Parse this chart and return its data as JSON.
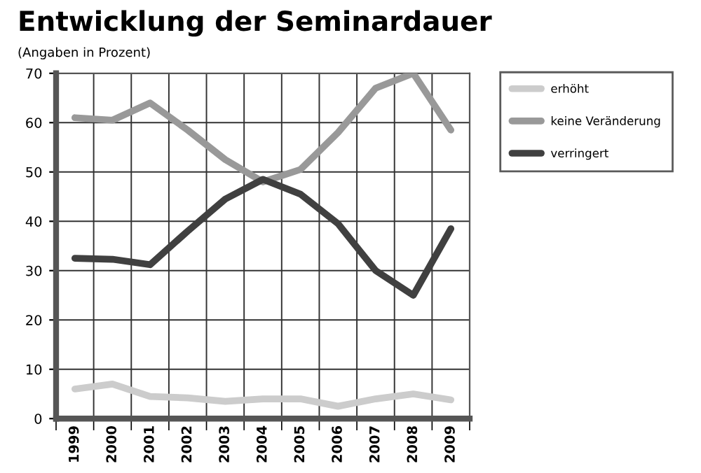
{
  "chart_data": {
    "type": "line",
    "title": "Entwicklung der Seminardauer",
    "subtitle": "(Angaben in Prozent)",
    "categories": [
      "1999",
      "2000",
      "2001",
      "2002",
      "2003",
      "2004",
      "2005",
      "2006",
      "2007",
      "2008",
      "2009"
    ],
    "series": [
      {
        "name": "erhöht",
        "color": "#cccccc",
        "values": [
          6,
          7,
          4.5,
          4.2,
          3.5,
          4,
          4,
          2.5,
          4,
          5,
          3.8
        ]
      },
      {
        "name": "keine Veränderung",
        "color": "#999999",
        "values": [
          61,
          60.5,
          64,
          58.5,
          52.5,
          48,
          50.5,
          58,
          67,
          70,
          58.5
        ]
      },
      {
        "name": "verringert",
        "color": "#404040",
        "values": [
          32.5,
          32.3,
          31.2,
          38,
          44.5,
          48.5,
          45.5,
          39.5,
          30,
          25,
          38.5
        ]
      }
    ],
    "ylim": [
      0,
      70
    ],
    "yticks": [
      0,
      10,
      20,
      30,
      40,
      50,
      60,
      70
    ],
    "grid": true,
    "legend": "top right",
    "marker": "none",
    "line_style": "solid"
  }
}
